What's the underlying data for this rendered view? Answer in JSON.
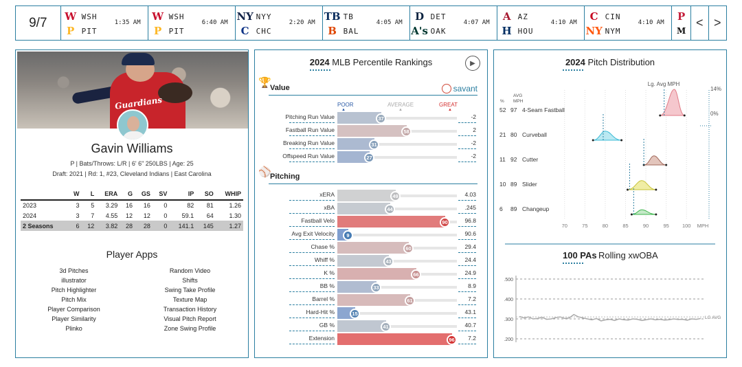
{
  "scoreboard": {
    "date": "9/7",
    "games": [
      {
        "away": "WSH",
        "home": "PIT",
        "time": "1:35 AM",
        "away_logo": "W",
        "home_logo": "P",
        "away_color": "#c8102e",
        "home_color": "#fdb827"
      },
      {
        "away": "WSH",
        "home": "PIT",
        "time": "6:40 AM",
        "away_logo": "W",
        "home_logo": "P",
        "away_color": "#c8102e",
        "home_color": "#fdb827"
      },
      {
        "away": "NYY",
        "home": "CHC",
        "time": "2:20 AM",
        "away_logo": "NY",
        "home_logo": "C",
        "away_color": "#132448",
        "home_color": "#0e3386"
      },
      {
        "away": "TB",
        "home": "BAL",
        "time": "4:05 AM",
        "away_logo": "TB",
        "home_logo": "B",
        "away_color": "#092c5c",
        "home_color": "#df4601"
      },
      {
        "away": "DET",
        "home": "OAK",
        "time": "4:07 AM",
        "away_logo": "D",
        "home_logo": "A's",
        "away_color": "#0c2340",
        "home_color": "#003831"
      },
      {
        "away": "AZ",
        "home": "HOU",
        "time": "4:10 AM",
        "away_logo": "A",
        "home_logo": "H",
        "away_color": "#a71930",
        "home_color": "#002d62"
      },
      {
        "away": "CIN",
        "home": "NYM",
        "time": "4:10 AM",
        "away_logo": "C",
        "home_logo": "NY",
        "away_color": "#c6011f",
        "home_color": "#ff5910"
      }
    ],
    "partial_logos": [
      "P",
      "M"
    ],
    "prev_label": "<",
    "next_label": ">"
  },
  "player": {
    "name": "Gavin Williams",
    "jersey_text": "Guardians",
    "info_line1": "P | Bats/Throws: L/R | 6' 6\" 250LBS | Age: 25",
    "info_line2": "Draft: 2021 | Rd: 1, #23, Cleveland Indians | East Carolina",
    "stats_headers": [
      "",
      "W",
      "L",
      "ERA",
      "G",
      "GS",
      "SV",
      "IP",
      "SO",
      "WHIP"
    ],
    "stats_rows": [
      [
        "2023",
        "3",
        "5",
        "3.29",
        "16",
        "16",
        "0",
        "82",
        "81",
        "1.26"
      ],
      [
        "2024",
        "3",
        "7",
        "4.55",
        "12",
        "12",
        "0",
        "59.1",
        "64",
        "1.30"
      ],
      [
        "2 Seasons",
        "6",
        "12",
        "3.82",
        "28",
        "28",
        "0",
        "141.1",
        "145",
        "1.27"
      ]
    ],
    "apps_title": "Player Apps",
    "apps_left": [
      "3d Pitches",
      "illustrator",
      "Pitch Highlighter",
      "Pitch Mix",
      "Player Comparison",
      "Player Similarity",
      "Plinko"
    ],
    "apps_right": [
      "Random Video",
      "Shifts",
      "Swing Take Profile",
      "Texture Map",
      "Transaction History",
      "Visual Pitch Report",
      "Zone Swing Profile"
    ]
  },
  "rankings": {
    "title_year": "2024",
    "title_rest": "MLB Percentile Rankings",
    "savant_label": "savant",
    "scale": {
      "poor": "POOR",
      "average": "AVERAGE",
      "great": "GREAT"
    },
    "value_title": "Value",
    "value_rows": [
      {
        "label": "Pitching Run Value",
        "pct": 37,
        "value": "-2"
      },
      {
        "label": "Fastball Run Value",
        "pct": 58,
        "value": "2"
      },
      {
        "label": "Breaking Run Value",
        "pct": 31,
        "value": "-2"
      },
      {
        "label": "Offspeed Run Value",
        "pct": 27,
        "value": "-2"
      }
    ],
    "pitching_title": "Pitching",
    "pitching_rows": [
      {
        "label": "xERA",
        "pct": 49,
        "value": "4.03"
      },
      {
        "label": "xBA",
        "pct": 44,
        "value": ".245"
      },
      {
        "label": "Fastball Velo",
        "pct": 90,
        "value": "96.8"
      },
      {
        "label": "Avg Exit Velocity",
        "pct": 9,
        "value": "90.6"
      },
      {
        "label": "Chase %",
        "pct": 60,
        "value": "29.4"
      },
      {
        "label": "Whiff %",
        "pct": 43,
        "value": "24.4"
      },
      {
        "label": "K %",
        "pct": 66,
        "value": "24.9"
      },
      {
        "label": "BB %",
        "pct": 33,
        "value": "8.9"
      },
      {
        "label": "Barrel %",
        "pct": 61,
        "value": "7.2"
      },
      {
        "label": "Hard-Hit %",
        "pct": 15,
        "value": "43.1"
      },
      {
        "label": "GB %",
        "pct": 41,
        "value": "40.7"
      },
      {
        "label": "Extension",
        "pct": 96,
        "value": "7.2"
      }
    ]
  },
  "distribution": {
    "title_year": "2024",
    "title_rest": "Pitch Distribution",
    "lg_avg_label": "Lg. Avg MPH",
    "col_pct": "%",
    "col_avg": "AVG",
    "col_mph": "MPH",
    "pct_14": "14%",
    "pct_0": "0%",
    "x_ticks": [
      "70",
      "75",
      "80",
      "85",
      "90",
      "95",
      "100"
    ],
    "x_unit": "MPH",
    "pitches": [
      {
        "pct": "52",
        "mph": "97",
        "name": "4-Seam Fastball",
        "color": "#e07a85",
        "fill": "#f3b9c0",
        "lo": 93.5,
        "hi": 99.5,
        "peak": 97,
        "h": 1.0,
        "lg": 94.5
      },
      {
        "pct": "21",
        "mph": "80",
        "name": "Curveball",
        "color": "#3bbbd6",
        "fill": "#a9e3ef",
        "lo": 77,
        "hi": 84,
        "peak": 80,
        "h": 0.35,
        "lg": 79.5
      },
      {
        "pct": "11",
        "mph": "92",
        "name": "Cutter",
        "color": "#a0685a",
        "fill": "#dcb7ab",
        "lo": 89.5,
        "hi": 95,
        "peak": 92,
        "h": 0.35,
        "lg": 89.5
      },
      {
        "pct": "10",
        "mph": "89",
        "name": "Slider",
        "color": "#c6c236",
        "fill": "#ece98e",
        "lo": 85.5,
        "hi": 92.5,
        "peak": 89,
        "h": 0.35,
        "lg": 86
      },
      {
        "pct": "6",
        "mph": "89",
        "name": "Changeup",
        "color": "#3cb44b",
        "fill": "#b5e3b9",
        "lo": 86.5,
        "hi": 92.5,
        "peak": 89,
        "h": 0.18,
        "lg": 87
      }
    ]
  },
  "rolling": {
    "title_bold": "100 PAs",
    "title_rest": "Rolling xwOBA",
    "y_ticks": [
      ".500",
      ".400",
      ".300",
      ".200"
    ],
    "lg_avg_label": "LG AVG",
    "chart_data": {
      "type": "line",
      "ylim": [
        0.2,
        0.5
      ],
      "series": [
        {
          "values": [
            0.312,
            0.305,
            0.31,
            0.3,
            0.302,
            0.308,
            0.298,
            0.3,
            0.306,
            0.31,
            0.302,
            0.305,
            0.322,
            0.31,
            0.305,
            0.3,
            0.295,
            0.302,
            0.29,
            0.295,
            0.298,
            0.292,
            0.3,
            0.296,
            0.294,
            0.3,
            0.298,
            0.292,
            0.296,
            0.3,
            0.295,
            0.298,
            0.294,
            0.296,
            0.3,
            0.297,
            0.298,
            0.293,
            0.3,
            0.298,
            0.302
          ]
        }
      ],
      "lg_avg": 0.31
    }
  }
}
